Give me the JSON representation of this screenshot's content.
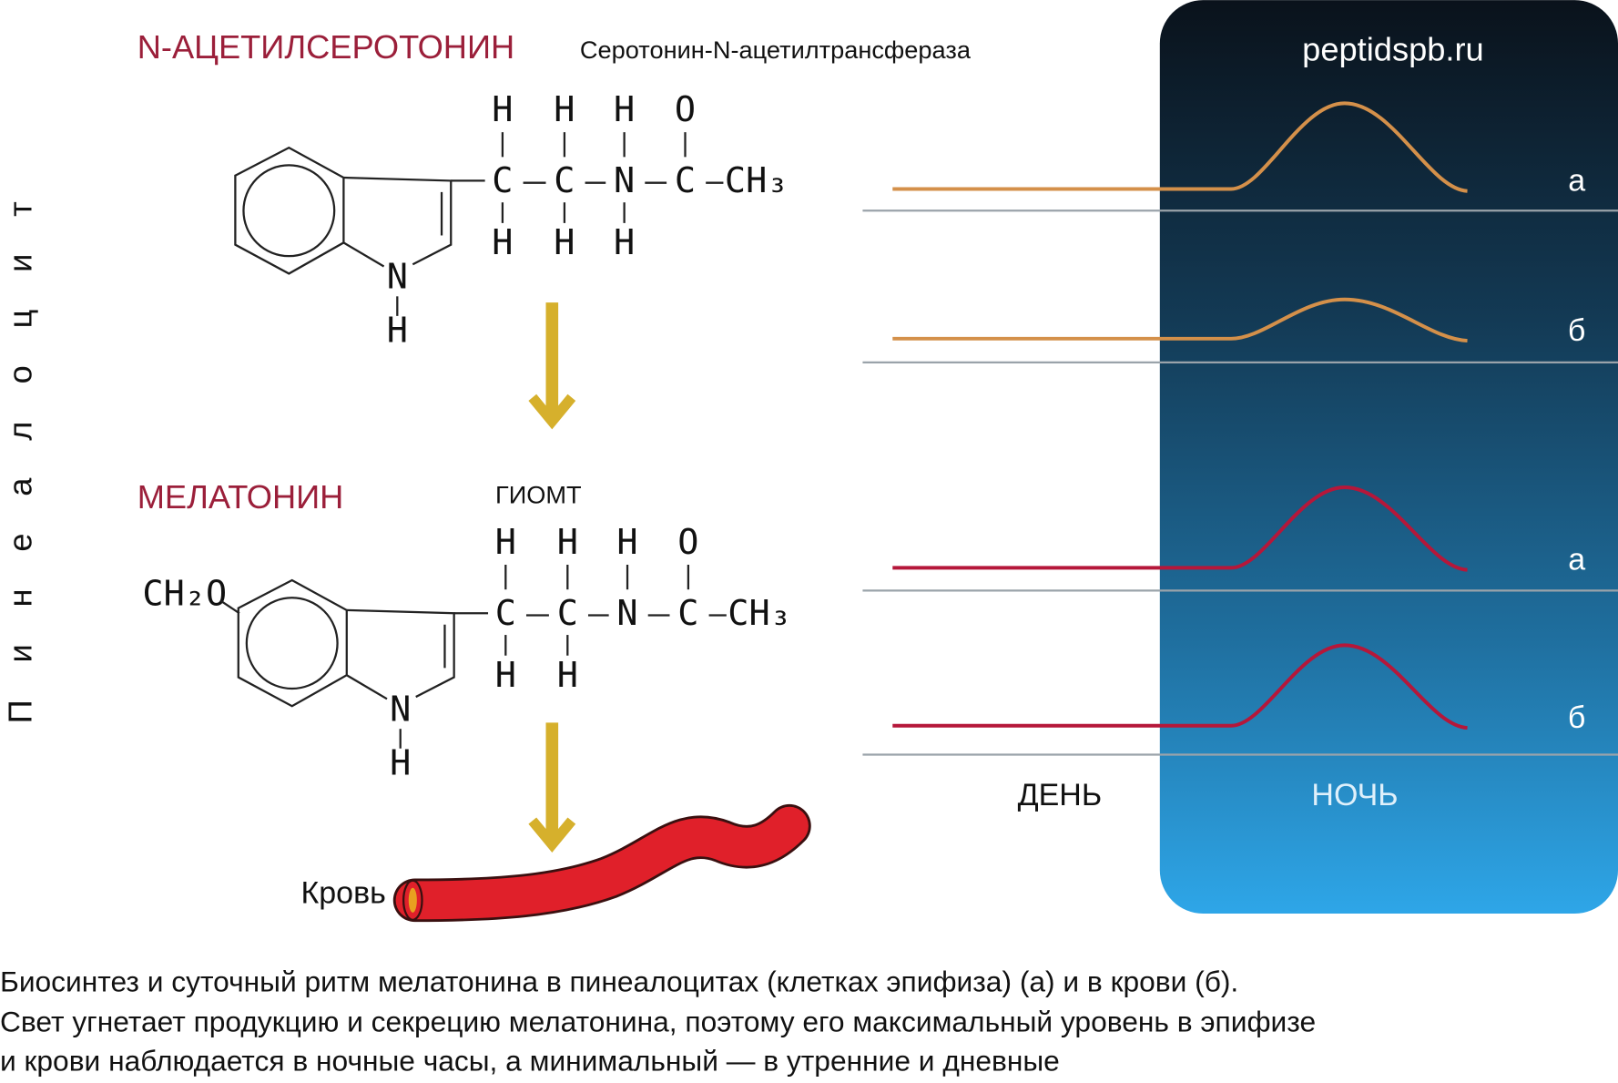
{
  "vertical_label": "Пинеалоцит",
  "watermark": "peptidspb.ru",
  "molecules": [
    {
      "name": "N-АЦЕТИЛСЕРОТОНИН",
      "enzyme": "Серотонин-N-ацетилтрансфераза",
      "top_row": [
        "H",
        "H",
        "H",
        "O"
      ],
      "chain": [
        "C",
        "C",
        "N",
        "C",
        "CH₃"
      ],
      "bottom_row": [
        "H",
        "H",
        "H"
      ],
      "ring_nh": [
        "N",
        "H"
      ]
    },
    {
      "name": "МЕЛАТОНИН",
      "enzyme": "ГИОМТ",
      "substituent": "CH₂O",
      "top_row": [
        "H",
        "H",
        "H",
        "O"
      ],
      "chain": [
        "C",
        "C",
        "N",
        "C",
        "CH₃"
      ],
      "bottom_row": [
        "H",
        "H"
      ],
      "ring_nh": [
        "N",
        "H"
      ]
    }
  ],
  "blood": "Кровь",
  "curve_labels": [
    "а",
    "б",
    "а",
    "б"
  ],
  "day": "ДЕНЬ",
  "night": "НОЧЬ",
  "caption": [
    "Биосинтез и суточный ритм мелатонина в пинеалоцитах (клетках эпифиза) (а) и в крови (б).",
    "Свет угнетает продукцию и секрецию мелатонина, поэтому его максимальный уровень в эпифизе",
    "и крови наблюдается в ночные часы, а минимальный — в утренние и дневные"
  ]
}
